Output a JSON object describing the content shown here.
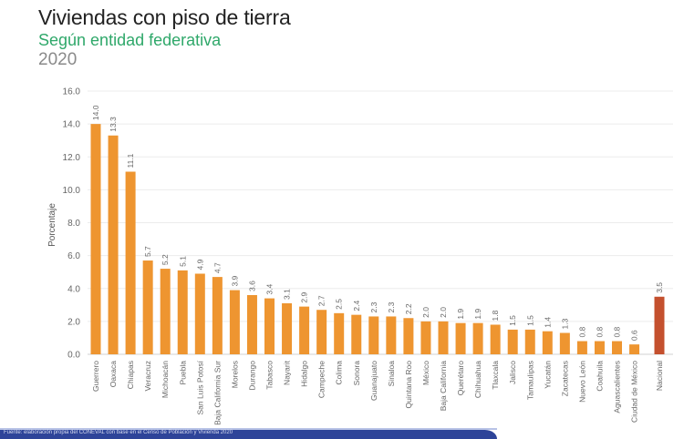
{
  "header": {
    "title": "Viviendas con piso de tierra",
    "subtitle": "Según entidad federativa",
    "year": "2020"
  },
  "footer": {
    "source_note": "Fuente: elaboración propia del CONEVAL con base en el Censo de Población y Vivienda 2020"
  },
  "colors": {
    "bar_state": "#ee9530",
    "bar_national": "#c4502e",
    "subtitle": "#2fa86a",
    "footer_band": "#2e4499"
  },
  "chart_data": {
    "type": "bar",
    "title": "Viviendas con piso de tierra",
    "subtitle": "Según entidad federativa, 2020",
    "xlabel": "",
    "ylabel": "Porcentaje",
    "ylim": [
      0,
      16
    ],
    "yticks": [
      0,
      2,
      4,
      6,
      8,
      10,
      12,
      14,
      16
    ],
    "ytick_labels": [
      "0.0",
      "2.0",
      "4.0",
      "6.0",
      "8.0",
      "10.0",
      "12.0",
      "14.0",
      "16.0"
    ],
    "grid": true,
    "legend": "none",
    "categories": [
      "Guerrero",
      "Oaxaca",
      "Chiapas",
      "Veracruz",
      "Michoacán",
      "Puebla",
      "San Luis Potosí",
      "Baja California Sur",
      "Morelos",
      "Durango",
      "Tabasco",
      "Nayarit",
      "Hidalgo",
      "Campeche",
      "Colima",
      "Sonora",
      "Guanajuato",
      "Sinaloa",
      "Quintana Roo",
      "México",
      "Baja California",
      "Querétaro",
      "Chihuahua",
      "Tlaxcala",
      "Jalisco",
      "Tamaulipas",
      "Yucatán",
      "Zacatecas",
      "Nuevo León",
      "Coahuila",
      "Aguascalientes",
      "Ciudad de México",
      "Nacional"
    ],
    "values": [
      14.0,
      13.3,
      11.1,
      5.7,
      5.2,
      5.1,
      4.9,
      4.7,
      3.9,
      3.6,
      3.4,
      3.1,
      2.9,
      2.7,
      2.5,
      2.4,
      2.3,
      2.3,
      2.2,
      2.0,
      2.0,
      1.9,
      1.9,
      1.8,
      1.5,
      1.5,
      1.4,
      1.3,
      0.8,
      0.8,
      0.8,
      0.6,
      3.5
    ],
    "data_labels": [
      "14.0",
      "13.3",
      "11.1",
      "5.7",
      "5.2",
      "5.1",
      "4.9",
      "4.7",
      "3.9",
      "3.6",
      "3.4",
      "3.1",
      "2.9",
      "2.7",
      "2.5",
      "2.4",
      "2.3",
      "2.3",
      "2.2",
      "2.0",
      "2.0",
      "1.9",
      "1.9",
      "1.8",
      "1.5",
      "1.5",
      "1.4",
      "1.3",
      "0.8",
      "0.8",
      "0.8",
      "0.6",
      "3.5"
    ],
    "highlight_category": "Nacional"
  }
}
